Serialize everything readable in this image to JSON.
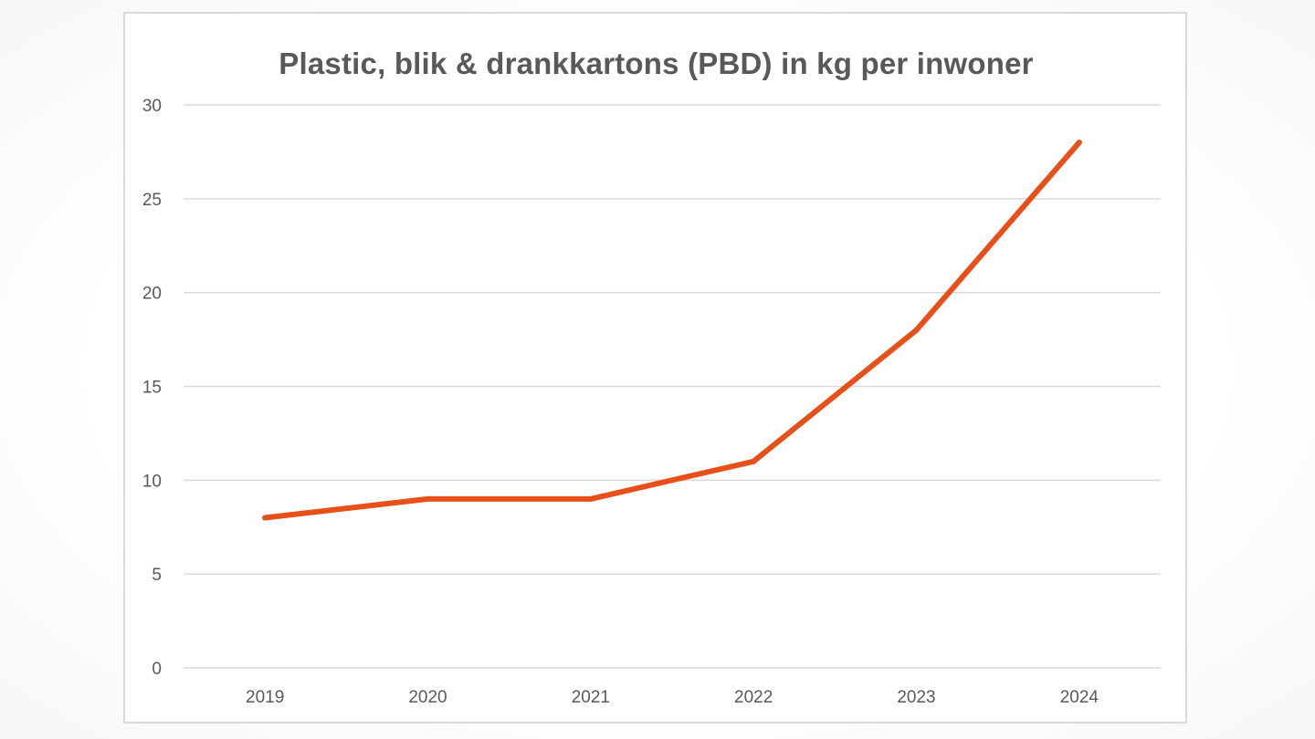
{
  "chart_data": {
    "type": "line",
    "title": "Plastic, blik & drankkartons (PBD) in kg per inwoner",
    "xlabel": "",
    "ylabel": "",
    "categories": [
      "2019",
      "2020",
      "2021",
      "2022",
      "2023",
      "2024"
    ],
    "series": [
      {
        "values": [
          8,
          9,
          9,
          11,
          18,
          28
        ]
      }
    ],
    "ylim": [
      0,
      30
    ],
    "yticks": [
      0,
      5,
      10,
      15,
      20,
      25,
      30
    ],
    "grid": true,
    "legend": "none",
    "colors": {
      "line": "#E8501A",
      "grid": "#D9D9D9",
      "text": "#595959",
      "border": "#D9D9D9"
    }
  }
}
